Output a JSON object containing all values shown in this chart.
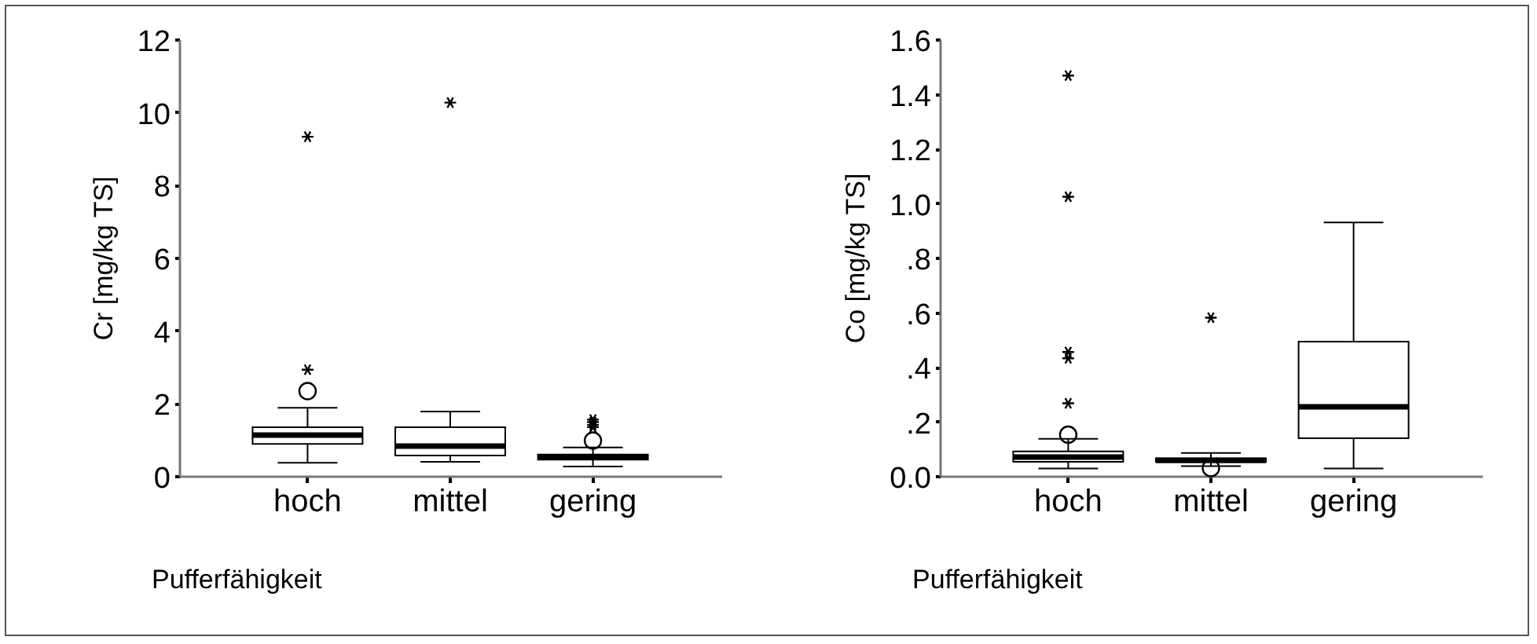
{
  "chart_data": [
    {
      "type": "box",
      "color": "#000000",
      "xlabel": "Pufferfähigkeit",
      "ylabel": "Cr [mg/kg TS]",
      "categories": [
        "hoch",
        "mittel",
        "gering"
      ],
      "boxes": [
        {
          "low": 0.36,
          "q1": 0.88,
          "median": 1.12,
          "q3": 1.34,
          "high": 1.87,
          "outliers": [
            2.33
          ]
        },
        {
          "low": 0.39,
          "q1": 0.56,
          "median": 0.82,
          "q3": 1.34,
          "high": 1.77
        },
        {
          "low": 0.26,
          "q1": 0.45,
          "median": 0.52,
          "q3": 0.59,
          "high": 0.78,
          "outliers": [
            0.97
          ]
        }
      ],
      "series": [
        {
          "type": "scatter",
          "marker": "cross",
          "color": "#000000",
          "x": [
            "hoch",
            "hoch",
            "mittel",
            "gering",
            "gering",
            "gering",
            "gering"
          ],
          "values": [
            2.92,
            9.32,
            10.26,
            1.34,
            1.4,
            1.48,
            1.55
          ]
        }
      ],
      "ylim": [
        0,
        12
      ],
      "yticks": [
        0,
        2,
        4,
        6,
        8,
        10,
        12
      ]
    },
    {
      "type": "box",
      "color": "#000000",
      "xlabel": "Pufferfähigkeit",
      "ylabel": "Co [mg/kg TS]",
      "categories": [
        "hoch",
        "mittel",
        "gering"
      ],
      "boxes": [
        {
          "low": 0.027,
          "q1": 0.052,
          "median": 0.069,
          "q3": 0.09,
          "high": 0.136,
          "outliers": [
            0.151
          ]
        },
        {
          "low": 0.036,
          "q1": 0.052,
          "median": 0.057,
          "q3": 0.065,
          "high": 0.084,
          "outliers": [
            0.029
          ]
        },
        {
          "low": 0.027,
          "q1": 0.138,
          "median": 0.253,
          "q3": 0.492,
          "high": 0.929
        }
      ],
      "series": [
        {
          "type": "scatter",
          "marker": "cross",
          "color": "#000000",
          "x": [
            "hoch",
            "hoch",
            "hoch",
            "hoch",
            "hoch",
            "mittel"
          ],
          "values": [
            0.266,
            0.431,
            0.454,
            1.023,
            1.467,
            0.58
          ]
        }
      ],
      "ylim": [
        0,
        1.6
      ],
      "yticks": [
        {
          "value": 0,
          "label": "0.0"
        },
        {
          "value": 0.2,
          "label": ".2"
        },
        {
          "value": 0.4,
          "label": ".4"
        },
        {
          "value": 0.6,
          "label": ".6"
        },
        {
          "value": 0.8,
          "label": ".8"
        },
        {
          "value": 1.0,
          "label": "1.0"
        },
        {
          "value": 1.2,
          "label": "1.2"
        },
        {
          "value": 1.4,
          "label": "1.4"
        },
        {
          "value": 1.6,
          "label": "1.6"
        }
      ]
    }
  ]
}
